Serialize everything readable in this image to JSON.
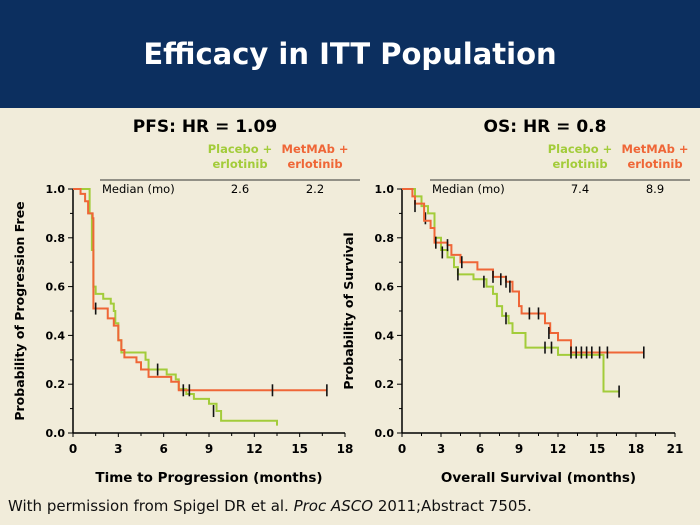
{
  "header": {
    "title": "Efficacy in ITT Population"
  },
  "footer": {
    "prefix": "With permission from Spigel DR et al. ",
    "journal": "Proc ASCO",
    "suffix": " 2011;Abstract 7505."
  },
  "colors": {
    "placebo": "#a3cc3a",
    "metmab": "#ef6637",
    "header_bg": "#0c2f5f",
    "background": "#f1ecda"
  },
  "chart_data": [
    {
      "type": "line",
      "step": true,
      "title": "PFS: HR = 1.09",
      "xlabel": "Time to Progression (months)",
      "ylabel": "Probability of Progression Free",
      "xlim": [
        0,
        18
      ],
      "ylim": [
        0,
        1
      ],
      "xticks": [
        "0",
        "3",
        "6",
        "9",
        "12",
        "15",
        "18"
      ],
      "yticks": [
        "0.0",
        "0.2",
        "0.4",
        "0.6",
        "0.8",
        "1.0"
      ],
      "median_label": "Median (mo)",
      "series": [
        {
          "name": "Placebo + erlotinib",
          "median": "2.6",
          "color": "#a3cc3a",
          "points": [
            [
              0,
              1
            ],
            [
              1.1,
              0.9
            ],
            [
              1.25,
              0.75
            ],
            [
              1.35,
              0.6
            ],
            [
              1.5,
              0.57
            ],
            [
              2,
              0.55
            ],
            [
              2.5,
              0.53
            ],
            [
              2.7,
              0.5
            ],
            [
              2.8,
              0.45
            ],
            [
              3,
              0.38
            ],
            [
              3.2,
              0.33
            ],
            [
              4.8,
              0.3
            ],
            [
              5,
              0.26
            ],
            [
              6.2,
              0.24
            ],
            [
              6.8,
              0.22
            ],
            [
              7,
              0.18
            ],
            [
              7.5,
              0.16
            ],
            [
              8,
              0.14
            ],
            [
              9,
              0.12
            ],
            [
              9.5,
              0.09
            ],
            [
              9.8,
              0.05
            ],
            [
              13.5,
              0.03
            ]
          ],
          "censored": [
            [
              5.6,
              0.26
            ],
            [
              9.3,
              0.09
            ]
          ]
        },
        {
          "name": "MetMAb + erlotinib",
          "median": "2.2",
          "color": "#ef6637",
          "points": [
            [
              0,
              1
            ],
            [
              0.5,
              0.98
            ],
            [
              0.8,
              0.95
            ],
            [
              1,
              0.9
            ],
            [
              1.3,
              0.88
            ],
            [
              1.35,
              0.51
            ],
            [
              2.3,
              0.47
            ],
            [
              2.7,
              0.44
            ],
            [
              3,
              0.38
            ],
            [
              3.2,
              0.34
            ],
            [
              3.4,
              0.31
            ],
            [
              4.2,
              0.29
            ],
            [
              4.5,
              0.26
            ],
            [
              5,
              0.23
            ],
            [
              6.5,
              0.21
            ],
            [
              7,
              0.175
            ],
            [
              16.8,
              0.175
            ]
          ],
          "censored": [
            [
              1.5,
              0.51
            ],
            [
              7.3,
              0.175
            ],
            [
              7.7,
              0.175
            ],
            [
              13.2,
              0.175
            ],
            [
              16.8,
              0.175
            ]
          ]
        }
      ]
    },
    {
      "type": "line",
      "step": true,
      "title": "OS: HR = 0.8",
      "xlabel": "Overall Survival (months)",
      "ylabel": "Probability of Survival",
      "xlim": [
        0,
        21
      ],
      "ylim": [
        0,
        1
      ],
      "xticks": [
        "0",
        "3",
        "6",
        "9",
        "12",
        "15",
        "18",
        "21"
      ],
      "yticks": [
        "0.0",
        "0.2",
        "0.4",
        "0.6",
        "0.8",
        "1.0"
      ],
      "median_label": "Median (mo)",
      "series": [
        {
          "name": "Placebo + erlotinib",
          "median": "7.4",
          "color": "#a3cc3a",
          "points": [
            [
              0,
              1
            ],
            [
              1,
              0.97
            ],
            [
              1.5,
              0.93
            ],
            [
              2,
              0.9
            ],
            [
              2.5,
              0.8
            ],
            [
              3,
              0.75
            ],
            [
              3.5,
              0.72
            ],
            [
              4,
              0.68
            ],
            [
              4.3,
              0.65
            ],
            [
              5.5,
              0.63
            ],
            [
              6.5,
              0.6
            ],
            [
              7,
              0.57
            ],
            [
              7.3,
              0.52
            ],
            [
              7.7,
              0.48
            ],
            [
              8.2,
              0.45
            ],
            [
              8.5,
              0.41
            ],
            [
              9.5,
              0.35
            ],
            [
              12,
              0.32
            ],
            [
              15.5,
              0.17
            ],
            [
              16.7,
              0.17
            ]
          ],
          "censored": [
            [
              1.8,
              0.88
            ],
            [
              3.1,
              0.74
            ],
            [
              4.3,
              0.65
            ],
            [
              6.3,
              0.62
            ],
            [
              8,
              0.47
            ],
            [
              11,
              0.35
            ],
            [
              11.5,
              0.35
            ],
            [
              16.7,
              0.17
            ]
          ]
        },
        {
          "name": "MetMAb + erlotinib",
          "median": "8.9",
          "color": "#ef6637",
          "points": [
            [
              0,
              1
            ],
            [
              0.8,
              0.97
            ],
            [
              1,
              0.94
            ],
            [
              1.7,
              0.87
            ],
            [
              2.2,
              0.84
            ],
            [
              2.5,
              0.78
            ],
            [
              3.5,
              0.77
            ],
            [
              3.8,
              0.73
            ],
            [
              4.5,
              0.7
            ],
            [
              5.8,
              0.67
            ],
            [
              7,
              0.64
            ],
            [
              8,
              0.62
            ],
            [
              8.5,
              0.58
            ],
            [
              9,
              0.52
            ],
            [
              9.2,
              0.49
            ],
            [
              11,
              0.45
            ],
            [
              11.4,
              0.41
            ],
            [
              12,
              0.38
            ],
            [
              13,
              0.33
            ],
            [
              18.6,
              0.33
            ]
          ],
          "censored": [
            [
              1,
              0.93
            ],
            [
              2.6,
              0.78
            ],
            [
              3.5,
              0.77
            ],
            [
              4.6,
              0.7
            ],
            [
              7,
              0.64
            ],
            [
              7.6,
              0.63
            ],
            [
              8,
              0.62
            ],
            [
              8.3,
              0.6
            ],
            [
              9.8,
              0.49
            ],
            [
              10.5,
              0.49
            ],
            [
              11.3,
              0.41
            ],
            [
              13,
              0.33
            ],
            [
              13.4,
              0.33
            ],
            [
              13.8,
              0.33
            ],
            [
              14.2,
              0.33
            ],
            [
              14.6,
              0.33
            ],
            [
              15.2,
              0.33
            ],
            [
              15.8,
              0.33
            ],
            [
              18.6,
              0.33
            ]
          ]
        }
      ]
    }
  ]
}
